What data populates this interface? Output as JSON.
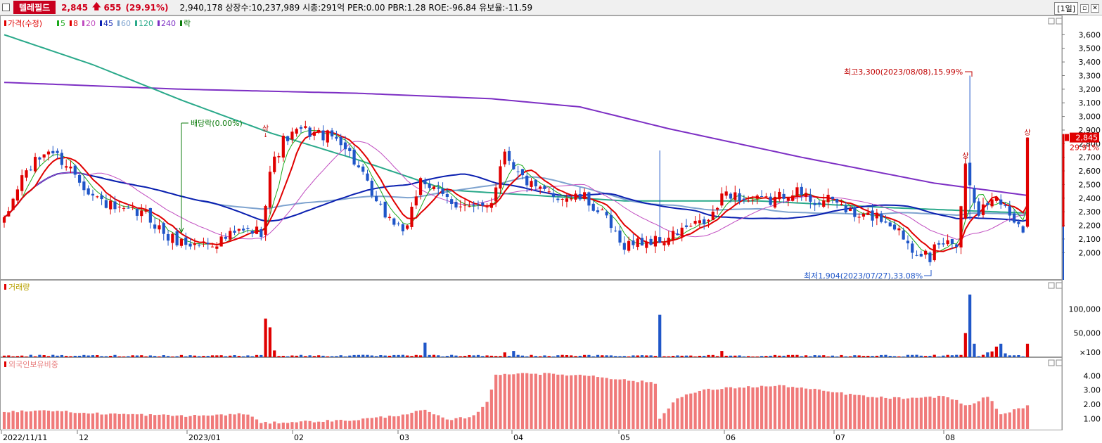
{
  "header": {
    "stock_name": "텔레필드",
    "price": "2,845",
    "change": "655",
    "change_pct": "(29.91%)",
    "info": "2,940,178  상장수:10,237,989 시총:291억  PER:0.00 PBR:1.28 ROE:-96.84 유보율:-11.59",
    "period": "[1일]"
  },
  "legend": {
    "price_label": "가격(수정)",
    "ma": [
      {
        "label": "5",
        "color": "#1aa81a"
      },
      {
        "label": "8",
        "color": "#e00000"
      },
      {
        "label": "20",
        "color": "#c04cc0"
      },
      {
        "label": "45",
        "color": "#0a1fb0"
      },
      {
        "label": "60",
        "color": "#7ea3cf"
      },
      {
        "label": "120",
        "color": "#2aa98a"
      },
      {
        "label": "240",
        "color": "#7d2fc4"
      }
    ],
    "fall_label": "락",
    "volume_label": "거래량",
    "foreign_label": "외국인보유비중"
  },
  "annotations": {
    "dividend": "배당락(0.00%)",
    "high": "최고3,300(2023/08/08),15.99%",
    "low": "최저1,904(2023/07/27),33.08%",
    "limit_up": "상",
    "current_price": "2,845",
    "current_pct": "29.91%"
  },
  "chart_data": {
    "type": "candlestick",
    "x_ticks": [
      "2022/11/11",
      "12",
      "2023/01",
      "02",
      "03",
      "04",
      "05",
      "06",
      "07",
      "08"
    ],
    "price_axis": {
      "ticks": [
        "3,600",
        "3,500",
        "3,400",
        "3,300",
        "3,200",
        "3,100",
        "3,000",
        "2,900",
        "2,800",
        "2,700",
        "2,600",
        "2,500",
        "2,400",
        "2,300",
        "2,200",
        "2,100",
        "2,000"
      ],
      "min": 1800,
      "max": 3700
    },
    "volume_axis": {
      "ticks": [
        "100,000",
        "50,000",
        "×100"
      ],
      "max": 140000
    },
    "foreign_axis": {
      "ticks": [
        "4.00",
        "3.00",
        "2.00",
        "1.00"
      ],
      "min": 0.3,
      "max": 4.6
    },
    "series": [
      {
        "name": "가격(수정)",
        "high": 3300,
        "high_date": "2023/08/08",
        "low": 1904,
        "low_date": "2023/07/27",
        "last": 2845
      },
      {
        "name": "5"
      },
      {
        "name": "8"
      },
      {
        "name": "20"
      },
      {
        "name": "45"
      },
      {
        "name": "60"
      },
      {
        "name": "120"
      },
      {
        "name": "240"
      }
    ],
    "anchors": [
      {
        "i": 0,
        "p": 2220
      },
      {
        "i": 4,
        "p": 2560
      },
      {
        "i": 10,
        "p": 2760
      },
      {
        "i": 15,
        "p": 2620
      },
      {
        "i": 20,
        "p": 2420
      },
      {
        "i": 26,
        "p": 2300
      },
      {
        "i": 32,
        "p": 2280
      },
      {
        "i": 37,
        "p": 2110
      },
      {
        "i": 42,
        "p": 2060
      },
      {
        "i": 48,
        "p": 2080
      },
      {
        "i": 53,
        "p": 2150
      },
      {
        "i": 58,
        "p": 2160
      },
      {
        "i": 60,
        "p": 2600
      },
      {
        "i": 63,
        "p": 2820
      },
      {
        "i": 67,
        "p": 2900
      },
      {
        "i": 71,
        "p": 2870
      },
      {
        "i": 76,
        "p": 2830
      },
      {
        "i": 80,
        "p": 2620
      },
      {
        "i": 84,
        "p": 2350
      },
      {
        "i": 88,
        "p": 2220
      },
      {
        "i": 91,
        "p": 2160
      },
      {
        "i": 94,
        "p": 2560
      },
      {
        "i": 97,
        "p": 2450
      },
      {
        "i": 101,
        "p": 2380
      },
      {
        "i": 106,
        "p": 2310
      },
      {
        "i": 110,
        "p": 2380
      },
      {
        "i": 113,
        "p": 2760
      },
      {
        "i": 116,
        "p": 2580
      },
      {
        "i": 120,
        "p": 2460
      },
      {
        "i": 126,
        "p": 2410
      },
      {
        "i": 131,
        "p": 2400
      },
      {
        "i": 136,
        "p": 2240
      },
      {
        "i": 139,
        "p": 2060
      },
      {
        "i": 144,
        "p": 2080
      },
      {
        "i": 149,
        "p": 2090
      },
      {
        "i": 154,
        "p": 2180
      },
      {
        "i": 159,
        "p": 2230
      },
      {
        "i": 163,
        "p": 2450
      },
      {
        "i": 168,
        "p": 2380
      },
      {
        "i": 173,
        "p": 2380
      },
      {
        "i": 178,
        "p": 2460
      },
      {
        "i": 183,
        "p": 2380
      },
      {
        "i": 188,
        "p": 2380
      },
      {
        "i": 192,
        "p": 2260
      },
      {
        "i": 197,
        "p": 2270
      },
      {
        "i": 201,
        "p": 2200
      },
      {
        "i": 205,
        "p": 2040
      },
      {
        "i": 208,
        "p": 1990
      },
      {
        "i": 212,
        "p": 2070
      },
      {
        "i": 215,
        "p": 2080
      },
      {
        "i": 217,
        "p": 2640
      },
      {
        "i": 218,
        "p": 2520
      },
      {
        "i": 220,
        "p": 2300
      },
      {
        "i": 224,
        "p": 2420
      },
      {
        "i": 227,
        "p": 2280
      },
      {
        "i": 230,
        "p": 2190
      },
      {
        "i": 231,
        "p": 2845
      }
    ],
    "volume_spikes": [
      {
        "i": 59,
        "v": 80000
      },
      {
        "i": 60,
        "v": 62000
      },
      {
        "i": 61,
        "v": 14000
      },
      {
        "i": 95,
        "v": 30000
      },
      {
        "i": 113,
        "v": 10000
      },
      {
        "i": 115,
        "v": 13000
      },
      {
        "i": 148,
        "v": 88000
      },
      {
        "i": 162,
        "v": 13000
      },
      {
        "i": 217,
        "v": 50000
      },
      {
        "i": 218,
        "v": 130000
      },
      {
        "i": 219,
        "v": 28000
      },
      {
        "i": 222,
        "v": 10000
      },
      {
        "i": 223,
        "v": 12000
      },
      {
        "i": 224,
        "v": 22000
      },
      {
        "i": 225,
        "v": 28000
      },
      {
        "i": 226,
        "v": 8000
      },
      {
        "i": 231,
        "v": 28000
      }
    ],
    "foreign_anchors": [
      {
        "i": 0,
        "v": 1.5
      },
      {
        "i": 10,
        "v": 1.6
      },
      {
        "i": 18,
        "v": 1.4
      },
      {
        "i": 30,
        "v": 1.3
      },
      {
        "i": 42,
        "v": 1.2
      },
      {
        "i": 55,
        "v": 1.35
      },
      {
        "i": 58,
        "v": 0.7
      },
      {
        "i": 66,
        "v": 0.8
      },
      {
        "i": 78,
        "v": 0.9
      },
      {
        "i": 88,
        "v": 1.2
      },
      {
        "i": 95,
        "v": 1.6
      },
      {
        "i": 100,
        "v": 0.9
      },
      {
        "i": 106,
        "v": 1.2
      },
      {
        "i": 109,
        "v": 2.2
      },
      {
        "i": 111,
        "v": 4.0
      },
      {
        "i": 116,
        "v": 4.2
      },
      {
        "i": 124,
        "v": 4.1
      },
      {
        "i": 133,
        "v": 4.0
      },
      {
        "i": 140,
        "v": 3.7
      },
      {
        "i": 147,
        "v": 3.5
      },
      {
        "i": 148,
        "v": 1.0
      },
      {
        "i": 152,
        "v": 2.5
      },
      {
        "i": 158,
        "v": 3.0
      },
      {
        "i": 166,
        "v": 3.2
      },
      {
        "i": 176,
        "v": 3.3
      },
      {
        "i": 186,
        "v": 2.9
      },
      {
        "i": 196,
        "v": 2.5
      },
      {
        "i": 206,
        "v": 2.4
      },
      {
        "i": 212,
        "v": 2.6
      },
      {
        "i": 218,
        "v": 1.9
      },
      {
        "i": 222,
        "v": 2.6
      },
      {
        "i": 225,
        "v": 1.3
      },
      {
        "i": 231,
        "v": 1.9
      }
    ],
    "ma120_anchors": [
      {
        "i": 0,
        "p": 3600
      },
      {
        "i": 20,
        "p": 3380
      },
      {
        "i": 40,
        "p": 3120
      },
      {
        "i": 60,
        "p": 2880
      },
      {
        "i": 80,
        "p": 2680
      },
      {
        "i": 100,
        "p": 2460
      },
      {
        "i": 120,
        "p": 2420
      },
      {
        "i": 140,
        "p": 2380
      },
      {
        "i": 170,
        "p": 2380
      },
      {
        "i": 200,
        "p": 2330
      },
      {
        "i": 231,
        "p": 2290
      }
    ],
    "ma240_anchors": [
      {
        "i": 0,
        "p": 3250
      },
      {
        "i": 40,
        "p": 3200
      },
      {
        "i": 80,
        "p": 3170
      },
      {
        "i": 110,
        "p": 3130
      },
      {
        "i": 130,
        "p": 3070
      },
      {
        "i": 150,
        "p": 2910
      },
      {
        "i": 180,
        "p": 2700
      },
      {
        "i": 210,
        "p": 2510
      },
      {
        "i": 231,
        "p": 2420
      }
    ]
  }
}
